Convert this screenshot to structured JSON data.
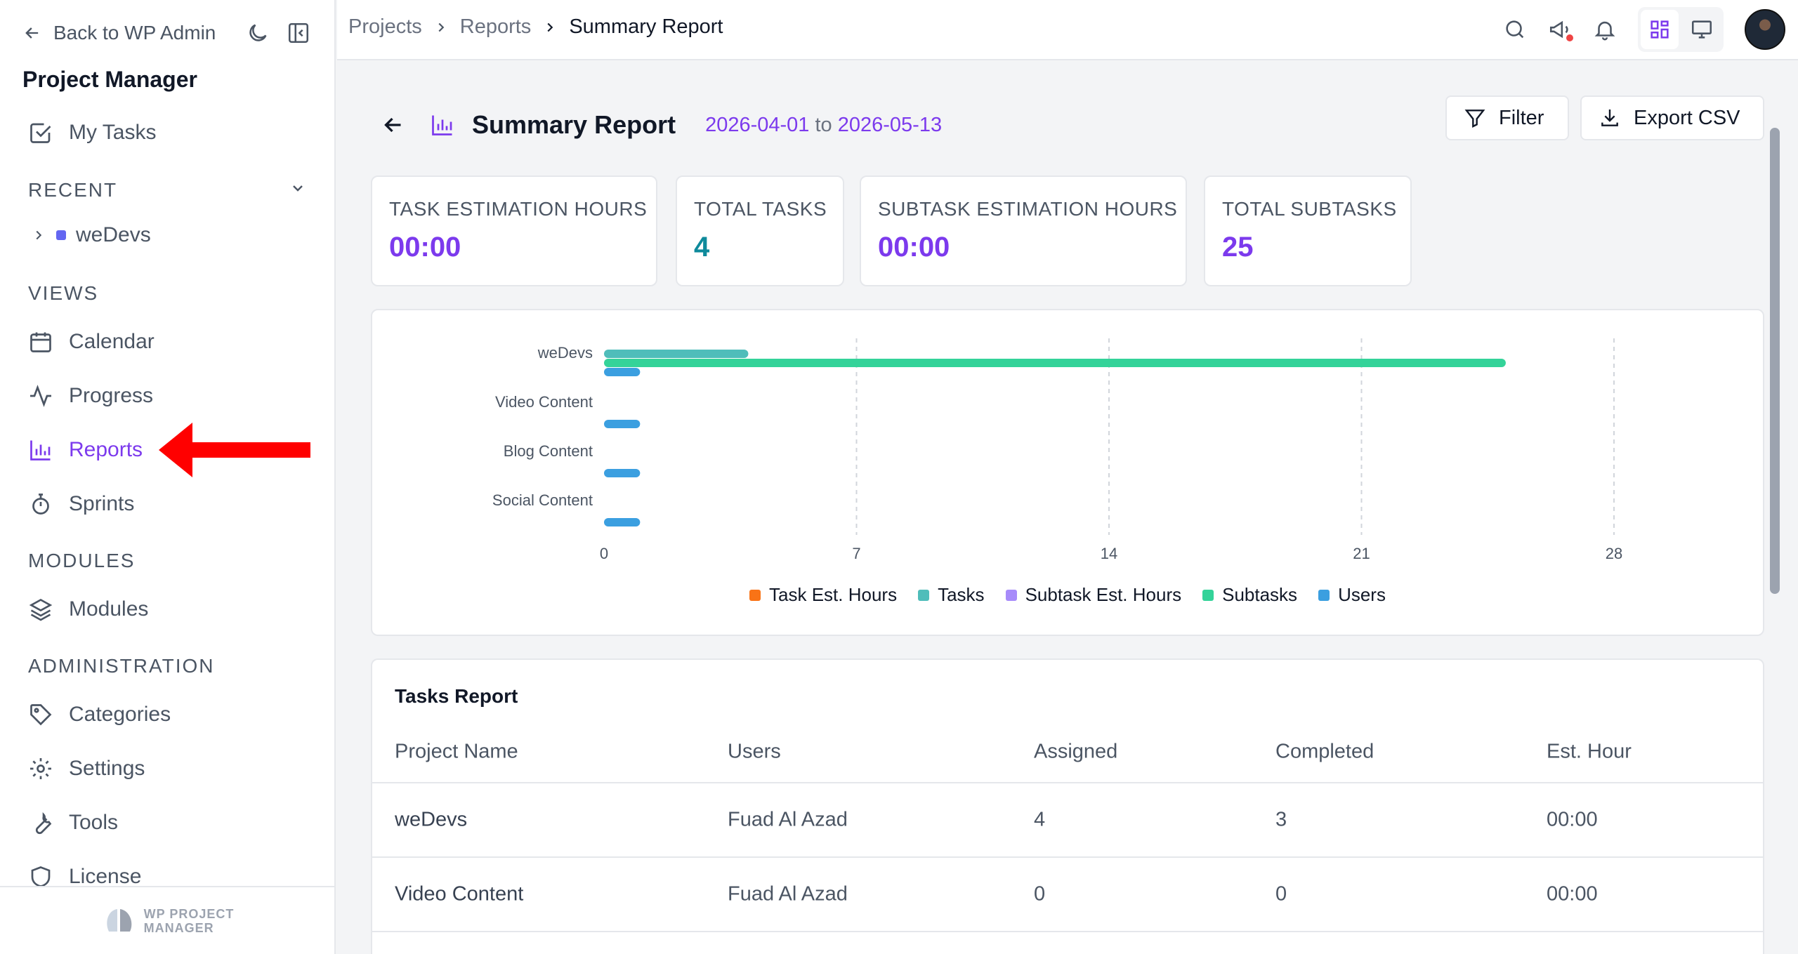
{
  "sidebar": {
    "back_label": "Back to WP Admin",
    "app_title": "Project Manager",
    "my_tasks": "My Tasks",
    "recent_label": "RECENT",
    "recent_projects": [
      "weDevs"
    ],
    "views_label": "VIEWS",
    "views": [
      "Calendar",
      "Progress",
      "Reports",
      "Sprints"
    ],
    "modules_label": "MODULES",
    "modules": [
      "Modules"
    ],
    "admin_label": "ADMINISTRATION",
    "admin": [
      "Categories",
      "Settings",
      "Tools",
      "License"
    ],
    "logo_line1": "WP PROJECT",
    "logo_line2": "MANAGER",
    "accent": "#7c3aed"
  },
  "topbar": {
    "breadcrumb": [
      "Projects",
      "Reports",
      "Summary Report"
    ]
  },
  "header": {
    "title": "Summary Report",
    "date_from": "2026-04-01",
    "date_sep": "to",
    "date_to": "2026-05-13",
    "filter_label": "Filter",
    "export_label": "Export CSV"
  },
  "stats": [
    {
      "label": "TASK ESTIMATION HOURS",
      "value": "00:00"
    },
    {
      "label": "TOTAL TASKS",
      "value": "4"
    },
    {
      "label": "SUBTASK ESTIMATION HOURS",
      "value": "00:00"
    },
    {
      "label": "TOTAL SUBTASKS",
      "value": "25"
    }
  ],
  "chart_data": {
    "type": "bar",
    "orientation": "horizontal",
    "categories": [
      "weDevs",
      "Video Content",
      "Blog Content",
      "Social Content"
    ],
    "series": [
      {
        "name": "Task Est. Hours",
        "color": "#f97316",
        "values": [
          0,
          0,
          0,
          0
        ]
      },
      {
        "name": "Tasks",
        "color": "#4fbdba",
        "values": [
          4,
          0,
          0,
          0
        ]
      },
      {
        "name": "Subtask Est. Hours",
        "color": "#a78bfa",
        "values": [
          0,
          0,
          0,
          0
        ]
      },
      {
        "name": "Subtasks",
        "color": "#34d399",
        "values": [
          25,
          0,
          0,
          0
        ]
      },
      {
        "name": "Users",
        "color": "#3b9fe0",
        "values": [
          1,
          1,
          1,
          1
        ]
      }
    ],
    "xticks": [
      "0",
      "7",
      "14",
      "21",
      "28"
    ],
    "xlim": [
      0,
      28
    ],
    "grid": "vertical dashed",
    "legend": "bottom-center"
  },
  "tasks_report": {
    "title": "Tasks Report",
    "columns": [
      "Project Name",
      "Users",
      "Assigned",
      "Completed",
      "Est. Hour"
    ],
    "rows": [
      [
        "weDevs",
        "Fuad Al Azad",
        "4",
        "3",
        "00:00"
      ],
      [
        "Video Content",
        "Fuad Al Azad",
        "0",
        "0",
        "00:00"
      ]
    ]
  }
}
